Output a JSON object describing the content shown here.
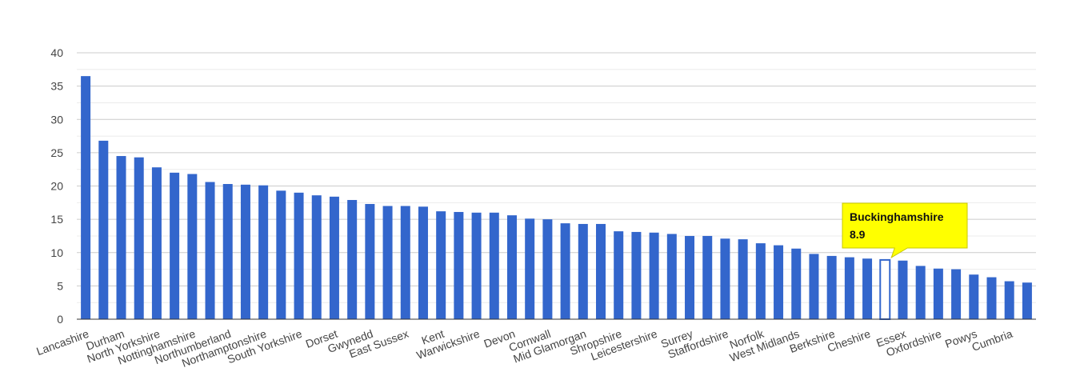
{
  "chart_data": {
    "type": "bar",
    "title": "",
    "xlabel": "",
    "ylabel": "",
    "ylim": [
      0,
      40
    ],
    "yticks": [
      0,
      5,
      10,
      15,
      20,
      25,
      30,
      35,
      40
    ],
    "grid": true,
    "bar_color": "#3366cc",
    "highlight_color": "#ffffff",
    "categories": [
      "Lancashire",
      "",
      "Durham",
      "",
      "North Yorkshire",
      "",
      "Nottinghamshire",
      "",
      "Northumberland",
      "",
      "Northamptonshire",
      "",
      "South Yorkshire",
      "",
      "Dorset",
      "",
      "Gwynedd",
      "",
      "East Sussex",
      "",
      "Kent",
      "",
      "Warwickshire",
      "",
      "Devon",
      "",
      "Cornwall",
      "",
      "Mid Glamorgan",
      "",
      "Shropshire",
      "",
      "Leicestershire",
      "",
      "Surrey",
      "",
      "Staffordshire",
      "",
      "Norfolk",
      "",
      "West Midlands",
      "",
      "Berkshire",
      "",
      "Cheshire",
      "",
      "Essex",
      "",
      "Oxfordshire",
      "",
      "Powys",
      "",
      "Cumbria",
      ""
    ],
    "values": [
      36.5,
      26.8,
      24.5,
      24.3,
      22.8,
      22.0,
      21.8,
      20.6,
      20.3,
      20.2,
      20.1,
      19.3,
      19.0,
      18.6,
      18.4,
      17.9,
      17.3,
      17.0,
      17.0,
      16.9,
      16.2,
      16.1,
      16.0,
      16.0,
      15.6,
      15.1,
      15.0,
      14.4,
      14.3,
      14.3,
      13.2,
      13.1,
      13.0,
      12.8,
      12.5,
      12.5,
      12.1,
      12.0,
      11.4,
      11.1,
      10.6,
      9.8,
      9.5,
      9.3,
      9.1,
      8.9,
      8.8,
      8.0,
      7.6,
      7.5,
      6.7,
      6.3,
      5.7,
      5.5
    ],
    "highlight_index": 45,
    "tooltip": {
      "label": "Buckinghamshire",
      "value": "8.9",
      "background": "#ffff00",
      "border": "#c8c800"
    }
  }
}
